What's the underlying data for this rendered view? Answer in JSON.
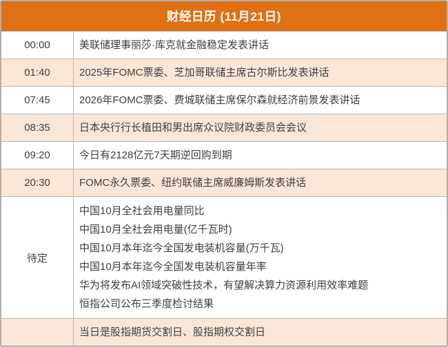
{
  "header": {
    "title": "财经日历 (11月21日)"
  },
  "table": {
    "time_column_label": "",
    "rows": [
      {
        "time": "00:00",
        "events": [
          "美联储理事丽莎·库克就金融稳定发表讲话"
        ]
      },
      {
        "time": "01:40",
        "events": [
          "2025年FOMC票委、芝加哥联储主席古尔斯比发表讲话"
        ]
      },
      {
        "time": "07:45",
        "events": [
          "2026年FOMC票委、费城联储主席保尔森就经济前景发表讲话"
        ]
      },
      {
        "time": "08:35",
        "events": [
          "日本央行行长植田和男出席众议院财政委员会会议"
        ]
      },
      {
        "time": "09:20",
        "events": [
          "今日有2128亿元7天期逆回购到期"
        ]
      },
      {
        "time": "20:30",
        "events": [
          "FOMC永久票委、纽约联储主席威廉姆斯发表讲话"
        ]
      },
      {
        "time": "待定",
        "events": [
          "中国10月全社会用电量同比",
          "中国10月全社会用电量(亿千瓦时)",
          "中国10月本年迄今全国发电装机容量(万千瓦)",
          "中国10月本年迄今全国发电装机容量年率",
          "华为将发布AI领域突破性技术，有望解决算力资源利用效率难题",
          "恒指公司公布三季度检讨结果"
        ]
      },
      {
        "time": "",
        "events": [
          "当日是股指期货交割日、股指期权交割日"
        ]
      }
    ]
  },
  "colors": {
    "header_bg": "#e07014",
    "header_text": "#ffffff",
    "row_alt_bg": "#fbe7d7",
    "border": "#b9b5b1",
    "outer_border": "#b2aeaa",
    "text": "#3f3f3f"
  }
}
